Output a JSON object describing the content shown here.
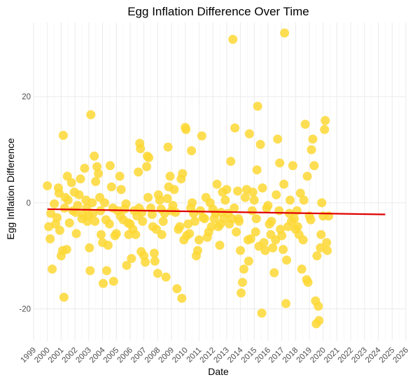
{
  "chart_data": {
    "type": "scatter",
    "title": "Egg Inflation Difference Over Time",
    "xlabel": "Date",
    "ylabel": "Egg Inflation Difference",
    "xlim": [
      1999.0,
      2026.0
    ],
    "ylim": [
      -26,
      34
    ],
    "y_ticks": [
      -20,
      0,
      20
    ],
    "x_ticks": [
      "1999",
      "2000",
      "2001",
      "2002",
      "2003",
      "2004",
      "2005",
      "2006",
      "2007",
      "2008",
      "2009",
      "2010",
      "2011",
      "2012",
      "2013",
      "2014",
      "2015",
      "2016",
      "2017",
      "2018",
      "2019",
      "2020",
      "2021",
      "2022",
      "2023",
      "2024",
      "2025",
      "2026"
    ],
    "grid": true,
    "legend": "none",
    "point_color": "#FDD835",
    "trend_color": "#E00000",
    "trend": {
      "x": [
        2000.0,
        2024.5
      ],
      "y": [
        -1.2,
        -2.2
      ]
    },
    "points": [
      [
        2000.0,
        3.2
      ],
      [
        2000.1,
        -4.5
      ],
      [
        2000.2,
        -6.8
      ],
      [
        2000.25,
        -2.0
      ],
      [
        2000.35,
        -12.5
      ],
      [
        2000.5,
        -0.2
      ],
      [
        2000.6,
        -4.0
      ],
      [
        2000.7,
        -2.8
      ],
      [
        2000.8,
        2.8
      ],
      [
        2000.85,
        1.8
      ],
      [
        2000.9,
        -5.2
      ],
      [
        2001.0,
        -10.0
      ],
      [
        2001.1,
        -9.0
      ],
      [
        2001.15,
        12.7
      ],
      [
        2001.2,
        -17.8
      ],
      [
        2001.25,
        -1.0
      ],
      [
        2001.3,
        1.0
      ],
      [
        2001.4,
        -8.8
      ],
      [
        2001.45,
        5.0
      ],
      [
        2001.5,
        0.5
      ],
      [
        2001.6,
        -3.8
      ],
      [
        2001.75,
        3.8
      ],
      [
        2001.85,
        -1.5
      ],
      [
        2001.95,
        2.0
      ],
      [
        2002.05,
        -1.8
      ],
      [
        2002.1,
        -5.8
      ],
      [
        2002.2,
        -0.5
      ],
      [
        2002.3,
        1.5
      ],
      [
        2002.4,
        4.5
      ],
      [
        2002.5,
        -3.0
      ],
      [
        2002.6,
        -2.2
      ],
      [
        2002.7,
        6.5
      ],
      [
        2002.8,
        0.5
      ],
      [
        2002.85,
        -1.0
      ],
      [
        2002.9,
        -3.5
      ],
      [
        2003.0,
        -2.5
      ],
      [
        2003.05,
        -8.5
      ],
      [
        2003.1,
        -12.8
      ],
      [
        2003.15,
        16.6
      ],
      [
        2003.25,
        0.0
      ],
      [
        2003.3,
        -2.0
      ],
      [
        2003.4,
        8.8
      ],
      [
        2003.45,
        -3.5
      ],
      [
        2003.5,
        4.0
      ],
      [
        2003.6,
        6.8
      ],
      [
        2003.7,
        5.5
      ],
      [
        2003.8,
        1.0
      ],
      [
        2003.85,
        -1.5
      ],
      [
        2003.9,
        -6.0
      ],
      [
        2004.0,
        -7.5
      ],
      [
        2004.05,
        -15.2
      ],
      [
        2004.15,
        0.0
      ],
      [
        2004.25,
        -3.2
      ],
      [
        2004.3,
        -12.8
      ],
      [
        2004.4,
        -8.0
      ],
      [
        2004.5,
        -4.0
      ],
      [
        2004.55,
        7.0
      ],
      [
        2004.65,
        3.0
      ],
      [
        2004.75,
        -1.0
      ],
      [
        2004.8,
        -14.8
      ],
      [
        2004.9,
        -6.2
      ],
      [
        2005.0,
        -5.8
      ],
      [
        2005.1,
        -1.5
      ],
      [
        2005.25,
        5.0
      ],
      [
        2005.3,
        -2.5
      ],
      [
        2005.35,
        2.5
      ],
      [
        2005.5,
        -3.2
      ],
      [
        2005.6,
        -1.2
      ],
      [
        2005.7,
        -0.2
      ],
      [
        2005.75,
        -11.8
      ],
      [
        2005.85,
        -3.8
      ],
      [
        2005.9,
        -6.0
      ],
      [
        2006.0,
        -4.0
      ],
      [
        2006.1,
        -10.5
      ],
      [
        2006.2,
        -5.0
      ],
      [
        2006.3,
        -1.5
      ],
      [
        2006.4,
        -6.0
      ],
      [
        2006.5,
        -2.5
      ],
      [
        2006.6,
        5.8
      ],
      [
        2006.65,
        -1.0
      ],
      [
        2006.7,
        11.2
      ],
      [
        2006.75,
        10.2
      ],
      [
        2006.8,
        -9.2
      ],
      [
        2006.85,
        -1.8
      ],
      [
        2006.9,
        -3.5
      ],
      [
        2007.0,
        -10.0
      ],
      [
        2007.1,
        -11.2
      ],
      [
        2007.2,
        6.8
      ],
      [
        2007.25,
        8.8
      ],
      [
        2007.3,
        1.0
      ],
      [
        2007.35,
        8.5
      ],
      [
        2007.5,
        -1.0
      ],
      [
        2007.6,
        -2.2
      ],
      [
        2007.65,
        -4.5
      ],
      [
        2007.75,
        -9.5
      ],
      [
        2007.8,
        -11.0
      ],
      [
        2007.9,
        -5.0
      ],
      [
        2008.0,
        -13.3
      ],
      [
        2008.05,
        1.5
      ],
      [
        2008.15,
        0.5
      ],
      [
        2008.25,
        -1.2
      ],
      [
        2008.3,
        -6.0
      ],
      [
        2008.4,
        -3.5
      ],
      [
        2008.5,
        -2.0
      ],
      [
        2008.6,
        -14.0
      ],
      [
        2008.7,
        0.8
      ],
      [
        2008.75,
        10.5
      ],
      [
        2008.8,
        3.0
      ],
      [
        2008.9,
        5.0
      ],
      [
        2009.0,
        -1.5
      ],
      [
        2009.1,
        -0.5
      ],
      [
        2009.2,
        2.5
      ],
      [
        2009.3,
        -1.8
      ],
      [
        2009.4,
        -16.2
      ],
      [
        2009.5,
        -5.0
      ],
      [
        2009.6,
        -4.5
      ],
      [
        2009.7,
        4.5
      ],
      [
        2009.75,
        -18.0
      ],
      [
        2009.8,
        5.5
      ],
      [
        2009.9,
        -7.0
      ],
      [
        2010.0,
        14.2
      ],
      [
        2010.05,
        13.8
      ],
      [
        2010.1,
        -6.2
      ],
      [
        2010.2,
        -4.0
      ],
      [
        2010.3,
        -5.8
      ],
      [
        2010.4,
        -1.0
      ],
      [
        2010.45,
        9.8
      ],
      [
        2010.5,
        0.0
      ],
      [
        2010.6,
        -2.0
      ],
      [
        2010.7,
        -3.5
      ],
      [
        2010.8,
        -10.0
      ],
      [
        2010.9,
        -9.0
      ],
      [
        2011.0,
        -7.0
      ],
      [
        2011.1,
        -1.5
      ],
      [
        2011.2,
        12.6
      ],
      [
        2011.3,
        -2.8
      ],
      [
        2011.4,
        -3.0
      ],
      [
        2011.5,
        1.0
      ],
      [
        2011.6,
        -6.5
      ],
      [
        2011.7,
        -5.5
      ],
      [
        2011.8,
        0.0
      ],
      [
        2011.9,
        -4.5
      ],
      [
        2012.0,
        -1.2
      ],
      [
        2012.1,
        -3.0
      ],
      [
        2012.2,
        -2.0
      ],
      [
        2012.3,
        3.5
      ],
      [
        2012.4,
        -4.5
      ],
      [
        2012.5,
        -8.0
      ],
      [
        2012.55,
        -4.0
      ],
      [
        2012.6,
        -1.8
      ],
      [
        2012.7,
        2.0
      ],
      [
        2012.8,
        -3.0
      ],
      [
        2012.9,
        0.5
      ],
      [
        2013.0,
        2.5
      ],
      [
        2013.1,
        -2.0
      ],
      [
        2013.2,
        -4.0
      ],
      [
        2013.3,
        7.8
      ],
      [
        2013.4,
        -3.0
      ],
      [
        2013.45,
        30.8
      ],
      [
        2013.55,
        -1.0
      ],
      [
        2013.6,
        14.1
      ],
      [
        2013.7,
        -5.5
      ],
      [
        2013.8,
        2.2
      ],
      [
        2013.85,
        -3.0
      ],
      [
        2013.9,
        -3.5
      ],
      [
        2014.0,
        -9.0
      ],
      [
        2014.05,
        -17.0
      ],
      [
        2014.15,
        -15.0
      ],
      [
        2014.25,
        -12.5
      ],
      [
        2014.35,
        1.0
      ],
      [
        2014.45,
        2.5
      ],
      [
        2014.55,
        -7.0
      ],
      [
        2014.6,
        -11.0
      ],
      [
        2014.65,
        13.0
      ],
      [
        2014.75,
        -6.8
      ],
      [
        2014.85,
        -1.5
      ],
      [
        2014.9,
        2.0
      ],
      [
        2015.0,
        0.5
      ],
      [
        2015.1,
        -5.5
      ],
      [
        2015.15,
        -3.0
      ],
      [
        2015.2,
        6.2
      ],
      [
        2015.25,
        18.2
      ],
      [
        2015.35,
        -8.2
      ],
      [
        2015.45,
        11.0
      ],
      [
        2015.55,
        -20.8
      ],
      [
        2015.6,
        2.8
      ],
      [
        2015.7,
        -7.5
      ],
      [
        2015.8,
        -9.0
      ],
      [
        2015.9,
        -1.0
      ],
      [
        2016.0,
        -0.5
      ],
      [
        2016.1,
        -4.0
      ],
      [
        2016.2,
        -6.0
      ],
      [
        2016.25,
        -3.5
      ],
      [
        2016.35,
        -8.5
      ],
      [
        2016.45,
        -13.2
      ],
      [
        2016.55,
        -7.0
      ],
      [
        2016.6,
        1.5
      ],
      [
        2016.7,
        12.0
      ],
      [
        2016.8,
        -1.5
      ],
      [
        2016.85,
        7.5
      ],
      [
        2016.9,
        -5.0
      ],
      [
        2017.0,
        -6.2
      ],
      [
        2017.1,
        -8.8
      ],
      [
        2017.15,
        3.5
      ],
      [
        2017.2,
        32.0
      ],
      [
        2017.3,
        -19.0
      ],
      [
        2017.35,
        -10.8
      ],
      [
        2017.45,
        -4.5
      ],
      [
        2017.55,
        -2.0
      ],
      [
        2017.6,
        0.5
      ],
      [
        2017.7,
        -3.5
      ],
      [
        2017.8,
        7.0
      ],
      [
        2017.9,
        -3.0
      ],
      [
        2018.0,
        -5.0
      ],
      [
        2018.1,
        -1.5
      ],
      [
        2018.15,
        -4.5
      ],
      [
        2018.25,
        -6.0
      ],
      [
        2018.35,
        1.8
      ],
      [
        2018.45,
        -12.5
      ],
      [
        2018.55,
        -7.0
      ],
      [
        2018.6,
        0.5
      ],
      [
        2018.7,
        14.8
      ],
      [
        2018.8,
        -14.5
      ],
      [
        2018.85,
        5.0
      ],
      [
        2018.9,
        -15.0
      ],
      [
        2019.0,
        -2.5
      ],
      [
        2019.1,
        -3.2
      ],
      [
        2019.15,
        10.0
      ],
      [
        2019.25,
        12.0
      ],
      [
        2019.35,
        7.0
      ],
      [
        2019.45,
        -18.5
      ],
      [
        2019.5,
        -22.8
      ],
      [
        2019.55,
        -10.0
      ],
      [
        2019.65,
        -19.5
      ],
      [
        2019.7,
        -22.2
      ],
      [
        2019.8,
        -8.5
      ],
      [
        2019.85,
        -6.0
      ],
      [
        2019.9,
        0.0
      ],
      [
        2020.0,
        -2.5
      ],
      [
        2020.1,
        13.8
      ],
      [
        2020.15,
        15.5
      ],
      [
        2020.25,
        -7.5
      ],
      [
        2020.3,
        -9.0
      ],
      [
        2020.4,
        -2.5
      ]
    ]
  }
}
